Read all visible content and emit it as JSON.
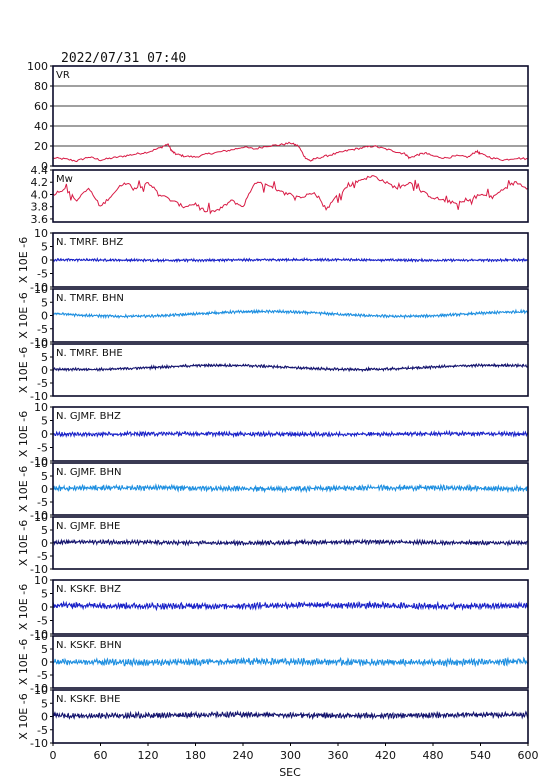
{
  "chart_data": {
    "type": "line",
    "title": "2022/07/31 07:40",
    "xlabel": "SEC",
    "xlim": [
      0,
      600
    ],
    "xticks": [
      0,
      60,
      120,
      180,
      240,
      300,
      360,
      420,
      480,
      540,
      600
    ],
    "panels": [
      {
        "label": "VR",
        "ylim": [
          0,
          100
        ],
        "yticks": [
          0,
          20,
          40,
          60,
          80,
          100
        ],
        "grid": true,
        "color": "#d81b45",
        "x": [
          0,
          15,
          30,
          45,
          60,
          75,
          90,
          105,
          120,
          135,
          145,
          150,
          155,
          165,
          180,
          195,
          210,
          225,
          240,
          255,
          270,
          285,
          300,
          310,
          318,
          325,
          330,
          345,
          360,
          375,
          390,
          405,
          420,
          435,
          445,
          450,
          460,
          470,
          480,
          495,
          510,
          525,
          535,
          540,
          555,
          570,
          585,
          600
        ],
        "y": [
          8,
          7,
          5,
          9,
          6,
          8,
          10,
          12,
          14,
          18,
          22,
          15,
          12,
          10,
          9,
          12,
          14,
          16,
          19,
          17,
          20,
          21,
          23,
          20,
          9,
          5,
          7,
          10,
          13,
          16,
          18,
          20,
          17,
          14,
          12,
          8,
          11,
          13,
          10,
          8,
          10,
          9,
          15,
          12,
          8,
          6,
          8,
          7
        ]
      },
      {
        "label": "Mw",
        "ylim": [
          3.55,
          4.4
        ],
        "yticks": [
          3.6,
          3.8,
          4.0,
          4.2,
          4.4
        ],
        "color": "#d81b45",
        "x": [
          0,
          15,
          30,
          45,
          60,
          75,
          90,
          105,
          120,
          135,
          150,
          165,
          180,
          195,
          210,
          225,
          240,
          255,
          270,
          285,
          300,
          315,
          330,
          345,
          360,
          375,
          390,
          405,
          420,
          435,
          450,
          465,
          480,
          495,
          510,
          525,
          540,
          555,
          570,
          585,
          600
        ],
        "y": [
          4.0,
          4.1,
          3.9,
          4.1,
          3.8,
          4.0,
          4.2,
          4.1,
          4.2,
          4.0,
          3.9,
          3.8,
          3.85,
          3.7,
          3.75,
          3.9,
          3.8,
          4.2,
          4.15,
          4.05,
          4.0,
          3.95,
          4.05,
          3.75,
          4.0,
          4.15,
          4.25,
          4.3,
          4.2,
          4.1,
          4.2,
          4.05,
          3.95,
          3.9,
          3.85,
          3.9,
          4.0,
          3.95,
          4.1,
          4.2,
          4.1
        ]
      },
      {
        "label": "N. TMRF. BHZ",
        "ylabel": "X 10E -6",
        "ylim": [
          -10,
          10
        ],
        "yticks": [
          -10,
          -5,
          0,
          5,
          10
        ],
        "color": "#1a22c8",
        "amplitude": 0.35,
        "offset": 0.0,
        "drift": 0.1
      },
      {
        "label": "N. TMRF. BHN",
        "ylabel": "X 10E -6",
        "ylim": [
          -10,
          10
        ],
        "yticks": [
          -10,
          -5,
          0,
          5,
          10
        ],
        "color": "#1e8fe0",
        "amplitude": 0.4,
        "offset": 0.6,
        "drift": 0.9
      },
      {
        "label": "N. TMRF. BHE",
        "ylabel": "X 10E -6",
        "ylim": [
          -10,
          10
        ],
        "yticks": [
          -10,
          -5,
          0,
          5,
          10
        ],
        "color": "#14146e",
        "amplitude": 0.4,
        "offset": 1.0,
        "drift": 0.8
      },
      {
        "label": "N. GJMF. BHZ",
        "ylabel": "X 10E -6",
        "ylim": [
          -10,
          10
        ],
        "yticks": [
          -10,
          -5,
          0,
          5,
          10
        ],
        "color": "#1a22c8",
        "amplitude": 0.6,
        "offset": 0.0,
        "drift": 0.1
      },
      {
        "label": "N. GJMF. BHN",
        "ylabel": "X 10E -6",
        "ylim": [
          -10,
          10
        ],
        "yticks": [
          -10,
          -5,
          0,
          5,
          10
        ],
        "color": "#1e8fe0",
        "amplitude": 0.8,
        "offset": 0.3,
        "drift": 0.2
      },
      {
        "label": "N. GJMF. BHE",
        "ylabel": "X 10E -6",
        "ylim": [
          -10,
          10
        ],
        "yticks": [
          -10,
          -5,
          0,
          5,
          10
        ],
        "color": "#14146e",
        "amplitude": 0.6,
        "offset": 0.2,
        "drift": 0.2
      },
      {
        "label": "N. KSKF. BHZ",
        "ylabel": "X 10E -6",
        "ylim": [
          -10,
          10
        ],
        "yticks": [
          -10,
          -5,
          0,
          5,
          10
        ],
        "color": "#1a22c8",
        "amplitude": 0.9,
        "offset": 0.5,
        "drift": 0.2
      },
      {
        "label": "N. KSKF. BHN",
        "ylabel": "X 10E -6",
        "ylim": [
          -10,
          10
        ],
        "yticks": [
          -10,
          -5,
          0,
          5,
          10
        ],
        "color": "#1e8fe0",
        "amplitude": 1.0,
        "offset": 0.0,
        "drift": 0.2
      },
      {
        "label": "N. KSKF. BHE",
        "ylabel": "X 10E -6",
        "ylim": [
          -10,
          10
        ],
        "yticks": [
          -10,
          -5,
          0,
          5,
          10
        ],
        "color": "#14146e",
        "amplitude": 0.8,
        "offset": 0.5,
        "drift": 0.2
      }
    ]
  }
}
